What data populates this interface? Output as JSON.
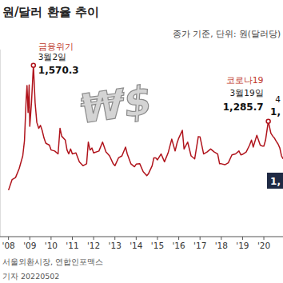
{
  "chart_data": {
    "type": "line",
    "title": "원/달러 환율 추이",
    "subtitle": "종가 기준, 단위: 원(달러당)",
    "color": "#b0141c",
    "tick_labels": "x",
    "grid": false,
    "icon_text": "₩$",
    "xlim": [
      2007.6,
      2020.9
    ],
    "ylim": [
      700,
      1650
    ],
    "xticks": [
      {
        "value": 2008,
        "label": "'08"
      },
      {
        "value": 2009,
        "label": "'09"
      },
      {
        "value": 2010,
        "label": "'10"
      },
      {
        "value": 2011,
        "label": "'11"
      },
      {
        "value": 2012,
        "label": "'12"
      },
      {
        "value": 2013,
        "label": "'13"
      },
      {
        "value": 2014,
        "label": "'14"
      },
      {
        "value": 2015,
        "label": "'15"
      },
      {
        "value": 2016,
        "label": "'16"
      },
      {
        "value": 2017,
        "label": "'17"
      },
      {
        "value": 2018,
        "label": "'18"
      },
      {
        "value": 2019,
        "label": "'19"
      },
      {
        "value": 2020,
        "label": "'20"
      }
    ],
    "x": [
      2008.0,
      2008.17,
      2008.33,
      2008.5,
      2008.67,
      2008.75,
      2008.83,
      2008.87,
      2008.92,
      2008.97,
      2009.0,
      2009.08,
      2009.17,
      2009.25,
      2009.33,
      2009.42,
      2009.5,
      2009.58,
      2009.67,
      2009.75,
      2009.83,
      2009.92,
      2010.0,
      2010.17,
      2010.33,
      2010.42,
      2010.5,
      2010.67,
      2010.75,
      2010.83,
      2010.92,
      2011.0,
      2011.17,
      2011.33,
      2011.5,
      2011.67,
      2011.75,
      2011.83,
      2011.92,
      2012.0,
      2012.25,
      2012.42,
      2012.58,
      2012.75,
      2012.92,
      2013.0,
      2013.17,
      2013.33,
      2013.5,
      2013.58,
      2013.75,
      2013.92,
      2014.0,
      2014.17,
      2014.33,
      2014.5,
      2014.58,
      2014.75,
      2014.83,
      2014.92,
      2015.0,
      2015.17,
      2015.33,
      2015.5,
      2015.67,
      2015.83,
      2015.92,
      2016.0,
      2016.17,
      2016.25,
      2016.42,
      2016.58,
      2016.75,
      2016.92,
      2017.0,
      2017.17,
      2017.33,
      2017.5,
      2017.67,
      2017.83,
      2017.92,
      2018.0,
      2018.17,
      2018.33,
      2018.5,
      2018.67,
      2018.83,
      2018.92,
      2019.0,
      2019.17,
      2019.33,
      2019.42,
      2019.5,
      2019.67,
      2019.83,
      2019.92,
      2020.0,
      2020.08,
      2020.21,
      2020.33,
      2020.42,
      2020.5,
      2020.58,
      2020.67,
      2020.75,
      2020.83,
      2020.9
    ],
    "values": [
      936,
      990,
      1000,
      1045,
      1110,
      1187,
      1400,
      1467,
      1330,
      1470,
      1260,
      1380,
      1570.3,
      1380,
      1280,
      1250,
      1265,
      1240,
      1200,
      1175,
      1170,
      1165,
      1140,
      1135,
      1120,
      1250,
      1210,
      1190,
      1140,
      1120,
      1145,
      1120,
      1125,
      1080,
      1060,
      1070,
      1180,
      1140,
      1150,
      1125,
      1135,
      1180,
      1130,
      1110,
      1070,
      1060,
      1100,
      1110,
      1155,
      1120,
      1070,
      1055,
      1068,
      1070,
      1030,
      1010,
      1020,
      1060,
      1100,
      1100,
      1090,
      1120,
      1080,
      1125,
      1195,
      1135,
      1175,
      1200,
      1240,
      1145,
      1180,
      1110,
      1095,
      1208,
      1207,
      1120,
      1130,
      1145,
      1130,
      1120,
      1070,
      1070,
      1065,
      1075,
      1115,
      1120,
      1135,
      1115,
      1118,
      1130,
      1165,
      1190,
      1155,
      1215,
      1165,
      1160,
      1160,
      1190,
      1285.7,
      1225,
      1210,
      1200,
      1185,
      1170,
      1150,
      1110,
      1095
    ],
    "annotations": [
      {
        "title": "금융위기",
        "date": "3월2일",
        "x": 2009.17,
        "value": 1570.3,
        "value_label": "1,570.3"
      },
      {
        "title": "코로나19",
        "date": "3월19일",
        "x": 2020.21,
        "value": 1285.7,
        "value_label": "1,285.7"
      }
    ],
    "edge_texts": [
      "4",
      "1,"
    ],
    "highlight_text": "1,",
    "source": "서울외환시장, 연합인포맥스",
    "credit": "기자 20220502"
  }
}
